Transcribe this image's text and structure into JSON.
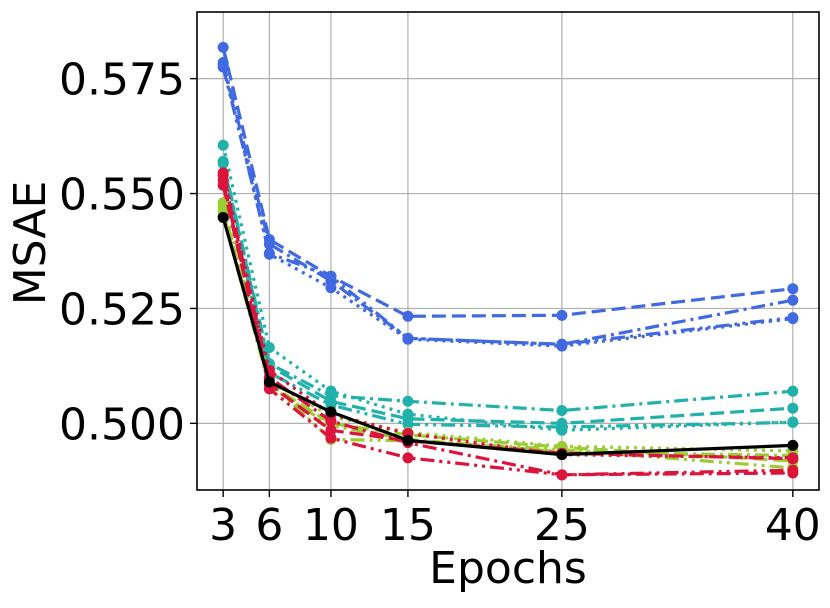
{
  "chart_data": {
    "type": "line",
    "title": "",
    "xlabel": "Epochs",
    "ylabel": "MSAE",
    "x": [
      3,
      6,
      10,
      15,
      25,
      40
    ],
    "xticks": [
      "3",
      "6",
      "10",
      "15",
      "25",
      "40"
    ],
    "yticks": [
      0.5,
      0.525,
      0.55,
      0.575
    ],
    "ytick_labels": [
      "0.500",
      "0.525",
      "0.550",
      "0.575"
    ],
    "xlim": [
      1.3,
      41.7
    ],
    "ylim": [
      0.4855,
      0.5895
    ],
    "grid": true,
    "legend": "none",
    "series": [
      {
        "color": "#4169E1",
        "dash": "dashed",
        "values": [
          0.5818,
          0.54,
          0.532,
          0.5233,
          0.5235,
          0.5293
        ]
      },
      {
        "color": "#4169E1",
        "dash": "dashdot",
        "values": [
          0.5785,
          0.539,
          0.531,
          0.5185,
          0.5172,
          0.5268
        ]
      },
      {
        "color": "#4169E1",
        "dash": "dotted",
        "values": [
          0.578,
          0.5368,
          0.5295,
          0.5183,
          0.5168,
          0.5228
        ]
      },
      {
        "color": "#4169E1",
        "dash": "dashdotdot",
        "values": [
          0.5775,
          0.537,
          0.532,
          0.5185,
          0.5172,
          0.523
        ]
      },
      {
        "color": "#20B2AA",
        "dash": "dotted",
        "values": [
          0.5605,
          0.5165,
          0.507,
          0.502,
          0.4985,
          0.5003
        ]
      },
      {
        "color": "#20B2AA",
        "dash": "dashdot",
        "values": [
          0.557,
          0.513,
          0.506,
          0.5048,
          0.5028,
          0.507
        ]
      },
      {
        "color": "#20B2AA",
        "dash": "dashed",
        "values": [
          0.5565,
          0.5125,
          0.5048,
          0.501,
          0.5,
          0.5033
        ]
      },
      {
        "color": "#20B2AA",
        "dash": "dashdotdot",
        "values": [
          0.554,
          0.511,
          0.504,
          0.4998,
          0.4992,
          0.5002
        ]
      },
      {
        "color": "#9ACD32",
        "dash": "dotted",
        "values": [
          0.548,
          0.5095,
          0.5015,
          0.498,
          0.495,
          0.494
        ]
      },
      {
        "color": "#9ACD32",
        "dash": "dashed",
        "values": [
          0.547,
          0.5085,
          0.5,
          0.4975,
          0.4948,
          0.4918
        ]
      },
      {
        "color": "#9ACD32",
        "dash": "dashdot",
        "values": [
          0.545,
          0.508,
          0.4995,
          0.4965,
          0.4938,
          0.493
        ]
      },
      {
        "color": "#9ACD32",
        "dash": "dashdotdot",
        "values": [
          0.546,
          0.509,
          0.4965,
          0.4962,
          0.4943,
          0.4903
        ]
      },
      {
        "color": "#DC143C",
        "dash": "dotted",
        "values": [
          0.5545,
          0.5115,
          0.502,
          0.4978,
          0.4932,
          0.4925
        ]
      },
      {
        "color": "#DC143C",
        "dash": "dashed",
        "values": [
          0.5518,
          0.5085,
          0.4985,
          0.4962,
          0.4935,
          0.4923
        ]
      },
      {
        "color": "#DC143C",
        "dash": "dashdot",
        "values": [
          0.554,
          0.51,
          0.5005,
          0.4958,
          0.4888,
          0.4892
        ]
      },
      {
        "color": "#DC143C",
        "dash": "dashdotdot",
        "values": [
          0.553,
          0.5075,
          0.4968,
          0.4925,
          0.4888,
          0.4898
        ]
      },
      {
        "color": "#000000",
        "dash": "solid",
        "values": [
          0.5448,
          0.509,
          0.5025,
          0.4963,
          0.4932,
          0.4952
        ]
      }
    ]
  }
}
